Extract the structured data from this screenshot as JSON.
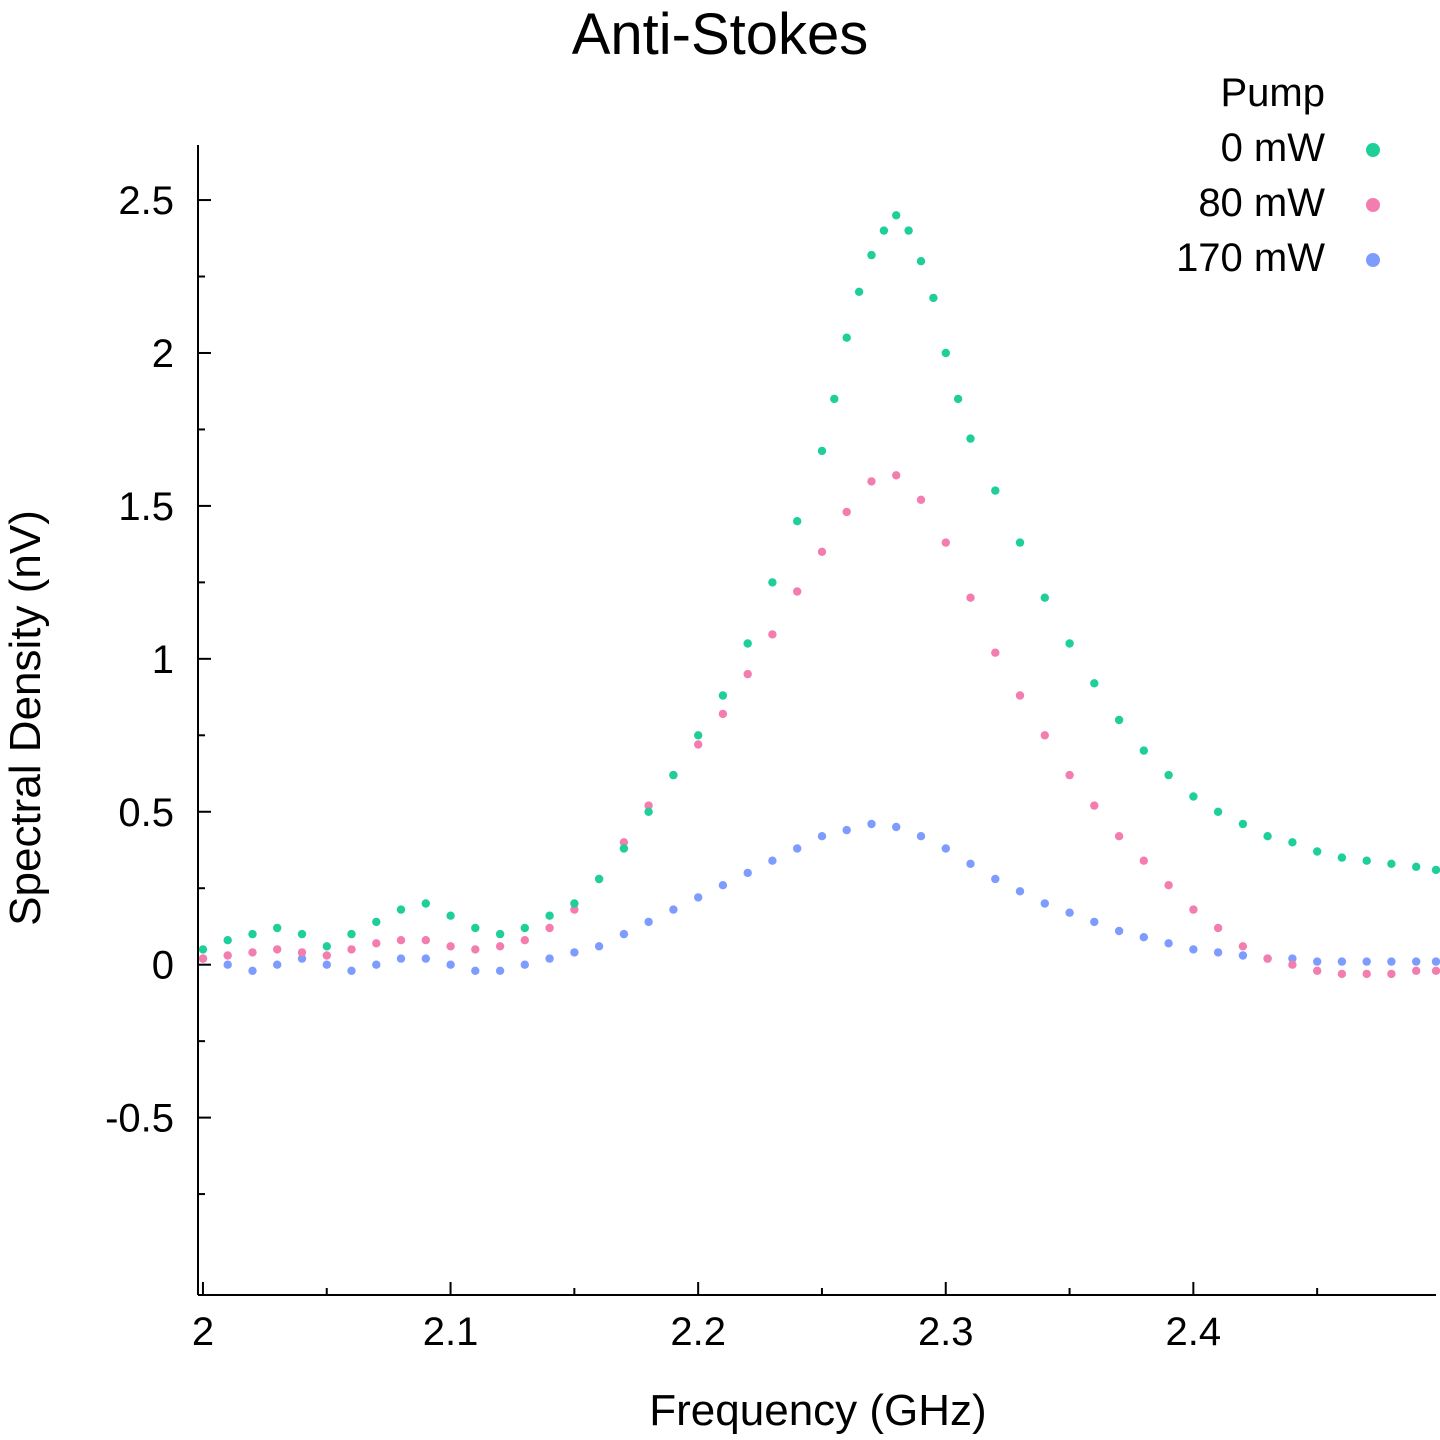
{
  "chart_data": {
    "type": "scatter",
    "title": "Anti-Stokes",
    "xlabel": "Frequency (GHz)",
    "ylabel": "Spectral Density (nV)",
    "xlim": [
      1.998,
      2.498
    ],
    "ylim": [
      -1.08,
      2.68
    ],
    "x_ticks": [
      2,
      2.1,
      2.2,
      2.3,
      2.4
    ],
    "x_tick_labels": [
      "2",
      "2.1",
      "2.2",
      "2.3",
      "2.4"
    ],
    "x_minor_ticks": [
      2.05,
      2.15,
      2.25,
      2.35,
      2.45
    ],
    "y_ticks": [
      -0.5,
      0,
      0.5,
      1,
      1.5,
      2,
      2.5
    ],
    "y_tick_labels": [
      "-0.5",
      "0",
      "0.5",
      "1",
      "1.5",
      "2",
      "2.5"
    ],
    "y_minor_ticks": [
      -0.75,
      -0.25,
      0.25,
      0.75,
      1.25,
      1.75,
      2.25
    ],
    "grid": false,
    "legend": {
      "title": "Pump",
      "position": "top-right",
      "entries": [
        "0 mW",
        "80 mW",
        "170 mW"
      ]
    },
    "series": [
      {
        "name": "0 mW",
        "color": "#1fcf9a",
        "x": [
          2.0,
          2.01,
          2.02,
          2.03,
          2.04,
          2.05,
          2.06,
          2.07,
          2.08,
          2.09,
          2.1,
          2.11,
          2.12,
          2.13,
          2.14,
          2.15,
          2.16,
          2.17,
          2.18,
          2.19,
          2.2,
          2.21,
          2.22,
          2.23,
          2.24,
          2.25,
          2.255,
          2.26,
          2.265,
          2.27,
          2.275,
          2.28,
          2.285,
          2.29,
          2.295,
          2.3,
          2.305,
          2.31,
          2.32,
          2.33,
          2.34,
          2.35,
          2.36,
          2.37,
          2.38,
          2.39,
          2.4,
          2.41,
          2.42,
          2.43,
          2.44,
          2.45,
          2.46,
          2.47,
          2.48,
          2.49,
          2.498
        ],
        "y": [
          0.05,
          0.08,
          0.1,
          0.12,
          0.1,
          0.06,
          0.1,
          0.14,
          0.18,
          0.2,
          0.16,
          0.12,
          0.1,
          0.12,
          0.16,
          0.2,
          0.28,
          0.38,
          0.5,
          0.62,
          0.75,
          0.88,
          1.05,
          1.25,
          1.45,
          1.68,
          1.85,
          2.05,
          2.2,
          2.32,
          2.4,
          2.45,
          2.4,
          2.3,
          2.18,
          2.0,
          1.85,
          1.72,
          1.55,
          1.38,
          1.2,
          1.05,
          0.92,
          0.8,
          0.7,
          0.62,
          0.55,
          0.5,
          0.46,
          0.42,
          0.4,
          0.37,
          0.35,
          0.34,
          0.33,
          0.32,
          0.31
        ]
      },
      {
        "name": "80 mW",
        "color": "#f47db0",
        "x": [
          2.0,
          2.01,
          2.02,
          2.03,
          2.04,
          2.05,
          2.06,
          2.07,
          2.08,
          2.09,
          2.1,
          2.11,
          2.12,
          2.13,
          2.14,
          2.15,
          2.16,
          2.17,
          2.18,
          2.19,
          2.2,
          2.21,
          2.22,
          2.23,
          2.24,
          2.25,
          2.26,
          2.27,
          2.28,
          2.29,
          2.3,
          2.31,
          2.32,
          2.33,
          2.34,
          2.35,
          2.36,
          2.37,
          2.38,
          2.39,
          2.4,
          2.41,
          2.42,
          2.43,
          2.44,
          2.45,
          2.46,
          2.47,
          2.48,
          2.49,
          2.498
        ],
        "y": [
          0.02,
          0.03,
          0.04,
          0.05,
          0.04,
          0.03,
          0.05,
          0.07,
          0.08,
          0.08,
          0.06,
          0.05,
          0.06,
          0.08,
          0.12,
          0.18,
          0.28,
          0.4,
          0.52,
          0.62,
          0.72,
          0.82,
          0.95,
          1.08,
          1.22,
          1.35,
          1.48,
          1.58,
          1.6,
          1.52,
          1.38,
          1.2,
          1.02,
          0.88,
          0.75,
          0.62,
          0.52,
          0.42,
          0.34,
          0.26,
          0.18,
          0.12,
          0.06,
          0.02,
          0.0,
          -0.02,
          -0.03,
          -0.03,
          -0.03,
          -0.02,
          -0.02
        ]
      },
      {
        "name": "170 mW",
        "color": "#7e9bff",
        "x": [
          2.0,
          2.01,
          2.02,
          2.03,
          2.04,
          2.05,
          2.06,
          2.07,
          2.08,
          2.09,
          2.1,
          2.11,
          2.12,
          2.13,
          2.14,
          2.15,
          2.16,
          2.17,
          2.18,
          2.19,
          2.2,
          2.21,
          2.22,
          2.23,
          2.24,
          2.25,
          2.26,
          2.27,
          2.28,
          2.29,
          2.3,
          2.31,
          2.32,
          2.33,
          2.34,
          2.35,
          2.36,
          2.37,
          2.38,
          2.39,
          2.4,
          2.41,
          2.42,
          2.43,
          2.44,
          2.45,
          2.46,
          2.47,
          2.48,
          2.49,
          2.498
        ],
        "y": [
          0.02,
          0.0,
          -0.02,
          0.0,
          0.02,
          0.0,
          -0.02,
          0.0,
          0.02,
          0.02,
          0.0,
          -0.02,
          -0.02,
          0.0,
          0.02,
          0.04,
          0.06,
          0.1,
          0.14,
          0.18,
          0.22,
          0.26,
          0.3,
          0.34,
          0.38,
          0.42,
          0.44,
          0.46,
          0.45,
          0.42,
          0.38,
          0.33,
          0.28,
          0.24,
          0.2,
          0.17,
          0.14,
          0.11,
          0.09,
          0.07,
          0.05,
          0.04,
          0.03,
          0.02,
          0.02,
          0.01,
          0.01,
          0.01,
          0.01,
          0.01,
          0.01
        ]
      }
    ]
  }
}
